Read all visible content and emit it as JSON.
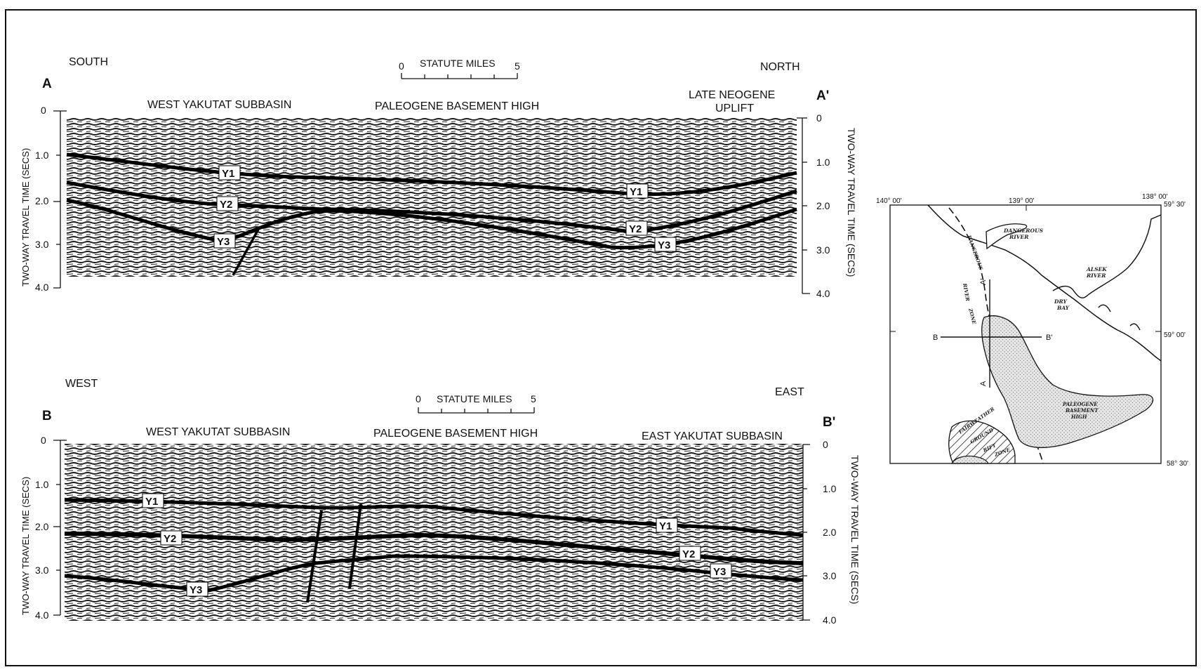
{
  "profile_a": {
    "id_left": "A",
    "id_right": "A'",
    "dir_left": "SOUTH",
    "dir_right": "NORTH",
    "region_left": "WEST YAKUTAT SUBBASIN",
    "region_center": "PALEOGENE BASEMENT HIGH",
    "region_right_line1": "LATE NEOGENE",
    "region_right_line2": "UPLIFT",
    "scale_title": "STATUTE MILES",
    "scale_min": "0",
    "scale_max": "5",
    "left_axis_title": "TWO-WAY TRAVEL TIME (SECS)",
    "right_axis_title": "TWO-WAY TRAVEL TIME (SECS)",
    "left_ticks": [
      "0",
      "1.0",
      "2.0",
      "3.0",
      "4.0"
    ],
    "right_ticks": [
      "0",
      "1.0",
      "2.0",
      "3.0",
      "4.0"
    ],
    "horizons": [
      {
        "name": "Y1",
        "label": "Y1"
      },
      {
        "name": "Y1",
        "label": "Y1"
      },
      {
        "name": "Y2",
        "label": "Y2"
      },
      {
        "name": "Y2",
        "label": "Y2"
      },
      {
        "name": "Y3",
        "label": "Y3"
      },
      {
        "name": "Y3",
        "label": "Y3"
      }
    ]
  },
  "profile_b": {
    "id_left": "B",
    "id_right": "B'",
    "dir_left": "WEST",
    "dir_right": "EAST",
    "region_left": "WEST YAKUTAT SUBBASIN",
    "region_center": "PALEOGENE BASEMENT HIGH",
    "region_right": "EAST YAKUTAT SUBBASIN",
    "scale_title": "STATUTE MILES",
    "scale_min": "0",
    "scale_max": "5",
    "left_axis_title": "TWO-WAY TRAVEL TIME (SECS)",
    "right_axis_title": "TWO-WAY TRAVEL TIME (SECS)",
    "left_ticks": [
      "0",
      "1.0",
      "2.0",
      "3.0",
      "4.0"
    ],
    "right_ticks": [
      "0",
      "1.0",
      "2.0",
      "3.0",
      "4.0"
    ],
    "horizons": [
      {
        "name": "Y1",
        "label": "Y1"
      },
      {
        "name": "Y1",
        "label": "Y1"
      },
      {
        "name": "Y2",
        "label": "Y2"
      },
      {
        "name": "Y2",
        "label": "Y2"
      },
      {
        "name": "Y3",
        "label": "Y3"
      },
      {
        "name": "Y3",
        "label": "Y3"
      }
    ]
  },
  "map": {
    "lon_left": "140° 00'",
    "lon_center": "139° 00'",
    "lon_right": "138° 00'",
    "lat_top": "59° 30'",
    "lat_mid": "59° 00'",
    "lat_bottom": "58° 30'",
    "dangerous_river_line1": "DANGEROUS",
    "dangerous_river_line2": "RIVER",
    "alsek_river_line1": "ALSEK",
    "alsek_river_line2": "RIVER",
    "dry_bay_line1": "DRY",
    "dry_bay_line2": "BAY",
    "fault_zone_words": [
      "DANGEROUS",
      "RIVER",
      "ZONE"
    ],
    "paleogene_line1": "PALEOGENE",
    "paleogene_line2": "BASEMENT",
    "paleogene_line3": "HIGH",
    "fairweather_words": [
      "FAIRWEATHER",
      "GROUND",
      "RIFT",
      "ZONE"
    ],
    "line_a_start": "A",
    "line_a_end": "A'",
    "line_b_start": "B",
    "line_b_end": "B'"
  },
  "colors": {
    "ink": "#111111",
    "paper": "#ffffff",
    "seismic": "#1a1a1a",
    "stipple": "#bdbdbd"
  }
}
